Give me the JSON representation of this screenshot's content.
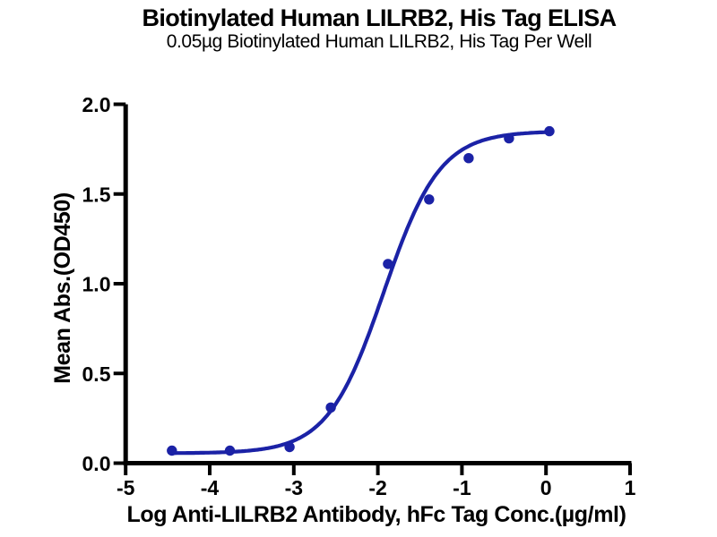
{
  "chart_data": {
    "type": "scatter",
    "title": "Biotinylated Human LILRB2, His Tag ELISA",
    "subtitle": "0.05µg Biotinylated Human LILRB2, His Tag Per Well",
    "xlabel": "Log Anti-LILRB2 Antibody, hFc Tag Conc.(µg/ml)",
    "ylabel": "Mean Abs.(OD450)",
    "xlim": [
      -5,
      1
    ],
    "ylim": [
      0,
      2
    ],
    "x_ticks": [
      -5,
      -4,
      -3,
      -2,
      -1,
      0,
      1
    ],
    "x_tick_labels": [
      "-5",
      "-4",
      "-3",
      "-2",
      "-1",
      "0",
      "1"
    ],
    "y_ticks": [
      0,
      0.5,
      1,
      1.5,
      2
    ],
    "y_tick_labels": [
      "0.0",
      "0.5",
      "1.0",
      "1.5",
      "2.0"
    ],
    "grid": false,
    "legend": "none",
    "axis_color": "#000000",
    "background_color": "#ffffff",
    "series": [
      {
        "name": "Anti-LILRB2 Antibody, hFc Tag",
        "marker": "circle",
        "marker_color": "#1b22a6",
        "line_color": "#1b22a6",
        "points": [
          {
            "log_conc": -4.45,
            "od450": 0.07
          },
          {
            "log_conc": -3.76,
            "od450": 0.07
          },
          {
            "log_conc": -3.05,
            "od450": 0.09
          },
          {
            "log_conc": -2.56,
            "od450": 0.31
          },
          {
            "log_conc": -1.88,
            "od450": 1.11
          },
          {
            "log_conc": -1.39,
            "od450": 1.47
          },
          {
            "log_conc": -0.92,
            "od450": 1.7
          },
          {
            "log_conc": -0.44,
            "od450": 1.81
          },
          {
            "log_conc": 0.04,
            "od450": 1.85
          }
        ]
      }
    ],
    "fit_curve": {
      "model": "4PL sigmoidal dose-response",
      "bottom": 0.055,
      "top": 1.85,
      "log_ec50": -1.93,
      "hill_slope": 1.3,
      "x_start": -4.45,
      "x_end": 0.05
    }
  }
}
